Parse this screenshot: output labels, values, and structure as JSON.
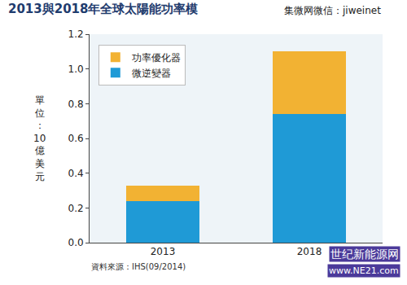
{
  "chart_data": {
    "type": "bar",
    "title": "2013與2018年全球太陽能功率模",
    "y_label": "單位：10億美元",
    "categories": [
      "2013",
      "2018"
    ],
    "series": [
      {
        "name": "微逆變器",
        "color": "#1f9ad6",
        "values": [
          0.24,
          0.74
        ]
      },
      {
        "name": "功率優化器",
        "color": "#f2b233",
        "values": [
          0.09,
          0.36
        ]
      }
    ],
    "stacked": true,
    "legend": "upper left",
    "grid": false,
    "ylim": [
      0,
      1.2
    ],
    "yticks": [
      {
        "value": 0,
        "label": "0.0"
      },
      0.2,
      0.4,
      0.6,
      0.8,
      {
        "value": 1,
        "label": "1.0"
      },
      1.2
    ],
    "annotations": [
      "資料來源：IHS(09/2014)",
      "集微网微信：jiweinet",
      "世纪新能源网",
      "www.NE21.com"
    ]
  }
}
